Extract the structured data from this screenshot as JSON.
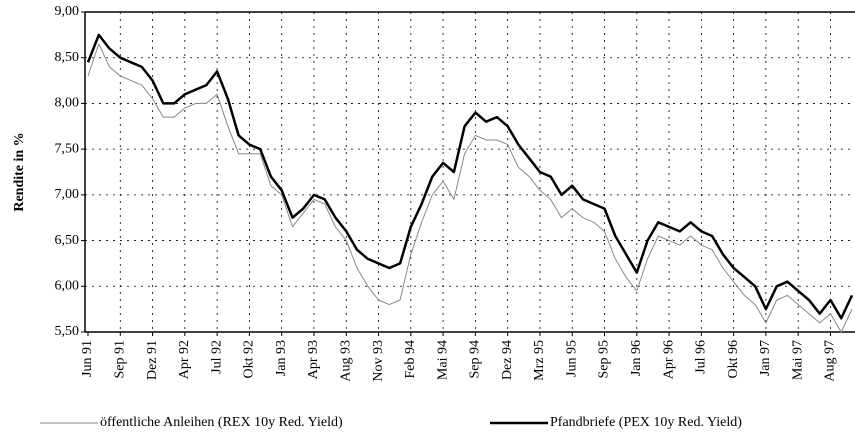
{
  "chart_data": {
    "type": "line",
    "y_label": "Rendite in %",
    "categories": [
      "Jun 91",
      null,
      null,
      "Sep 91",
      null,
      null,
      "Dez 91",
      null,
      null,
      "Apr 92",
      null,
      null,
      "Jul 92",
      null,
      null,
      "Okt 92",
      null,
      null,
      "Jan 93",
      null,
      null,
      "Apr 93",
      null,
      null,
      "Aug 93",
      null,
      null,
      "Nov 93",
      null,
      null,
      "Feb 94",
      null,
      null,
      "Mai 94",
      null,
      null,
      "Sep 94",
      null,
      null,
      "Dez 94",
      null,
      null,
      "Mrz 95",
      null,
      null,
      "Jun 95",
      null,
      null,
      "Sep 95",
      null,
      null,
      "Jan 96",
      null,
      null,
      "Apr 96",
      null,
      null,
      "Jul 96",
      null,
      null,
      "Okt 96",
      null,
      null,
      "Jan 97",
      null,
      null,
      "Mai 97",
      null,
      null,
      "Aug 97",
      null,
      null
    ],
    "series": [
      {
        "name": "öffentliche Anleihen (REX 10y Red. Yield)",
        "color": "#888888",
        "width": 1,
        "values": [
          8.3,
          8.65,
          8.4,
          8.3,
          8.25,
          8.2,
          8.05,
          7.85,
          7.85,
          7.95,
          8.0,
          8.0,
          8.1,
          7.75,
          7.45,
          7.45,
          7.45,
          7.1,
          7.0,
          6.65,
          6.8,
          6.95,
          6.9,
          6.65,
          6.5,
          6.2,
          6.0,
          5.85,
          5.8,
          5.85,
          6.35,
          6.7,
          7.0,
          7.15,
          6.95,
          7.45,
          7.65,
          7.6,
          7.6,
          7.55,
          7.3,
          7.2,
          7.05,
          6.95,
          6.75,
          6.85,
          6.75,
          6.7,
          6.6,
          6.3,
          6.1,
          5.95,
          6.3,
          6.55,
          6.5,
          6.45,
          6.55,
          6.45,
          6.4,
          6.2,
          6.05,
          5.9,
          5.8,
          5.6,
          5.85,
          5.9,
          5.8,
          5.7,
          5.6,
          5.7,
          5.5,
          5.75
        ]
      },
      {
        "name": "Pfandbriefe (PEX 10y Red. Yield)",
        "color": "#000000",
        "width": 2.5,
        "values": [
          8.45,
          8.75,
          8.6,
          8.5,
          8.45,
          8.4,
          8.25,
          8.0,
          8.0,
          8.1,
          8.15,
          8.2,
          8.35,
          8.05,
          7.65,
          7.55,
          7.5,
          7.2,
          7.05,
          6.75,
          6.85,
          7.0,
          6.95,
          6.75,
          6.6,
          6.4,
          6.3,
          6.25,
          6.2,
          6.25,
          6.65,
          6.9,
          7.2,
          7.35,
          7.25,
          7.75,
          7.9,
          7.8,
          7.85,
          7.75,
          7.55,
          7.4,
          7.25,
          7.2,
          7.0,
          7.1,
          6.95,
          6.9,
          6.85,
          6.55,
          6.35,
          6.15,
          6.5,
          6.7,
          6.65,
          6.6,
          6.7,
          6.6,
          6.55,
          6.35,
          6.2,
          6.1,
          6.0,
          5.75,
          6.0,
          6.05,
          5.95,
          5.85,
          5.7,
          5.85,
          5.65,
          5.9
        ]
      }
    ],
    "ylim": [
      5.5,
      9.0
    ],
    "yticks": [
      {
        "value": 5.5,
        "label": "5,50"
      },
      {
        "value": 6.0,
        "label": "6,00"
      },
      {
        "value": 6.5,
        "label": "6,50"
      },
      {
        "value": 7.0,
        "label": "7,00"
      },
      {
        "value": 7.5,
        "label": "7,50"
      },
      {
        "value": 8.0,
        "label": "8,00"
      },
      {
        "value": 8.5,
        "label": "8,50"
      },
      {
        "value": 9.0,
        "label": "9,00"
      }
    ],
    "grid": true,
    "legend": "bottom"
  }
}
